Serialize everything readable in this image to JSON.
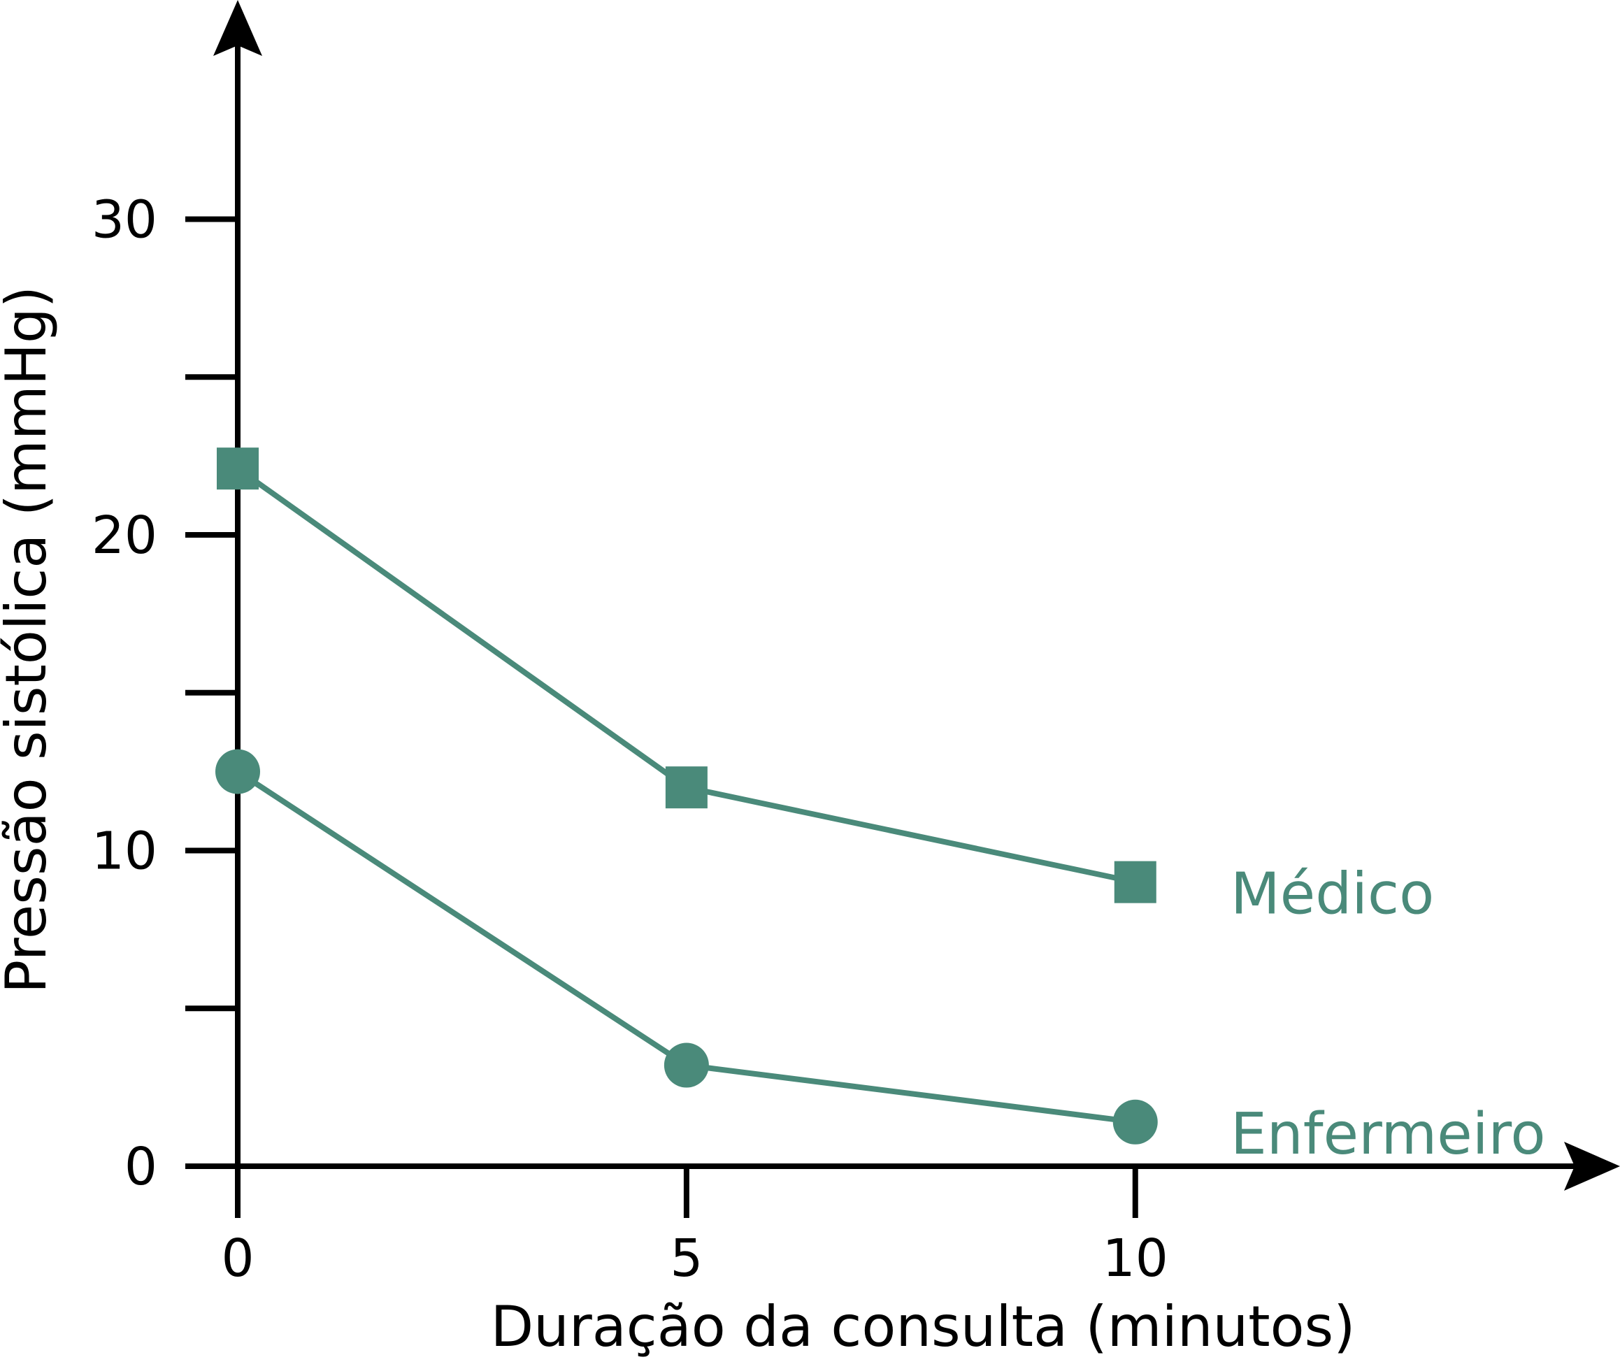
{
  "chart_data": {
    "type": "line",
    "title": "",
    "xlabel": "Duração da consulta (minutos)",
    "ylabel": "Pressão sistólica (mmHg)",
    "x": [
      0,
      5,
      10
    ],
    "xlim": [
      0,
      15.4
    ],
    "ylim": [
      0,
      33
    ],
    "xticks": [
      0,
      5,
      10
    ],
    "yticks": [
      0,
      10,
      20,
      30
    ],
    "yticks_minor": [
      5,
      15,
      25
    ],
    "grid": false,
    "legend": "inline labels at right end of each series",
    "series": [
      {
        "name": "Médico",
        "marker": "square",
        "color": "#4a8a7a",
        "values": [
          22.1,
          12.0,
          9.0
        ]
      },
      {
        "name": "Enfermeiro",
        "marker": "circle",
        "color": "#4a8a7a",
        "values": [
          12.5,
          3.2,
          1.4
        ]
      }
    ]
  }
}
